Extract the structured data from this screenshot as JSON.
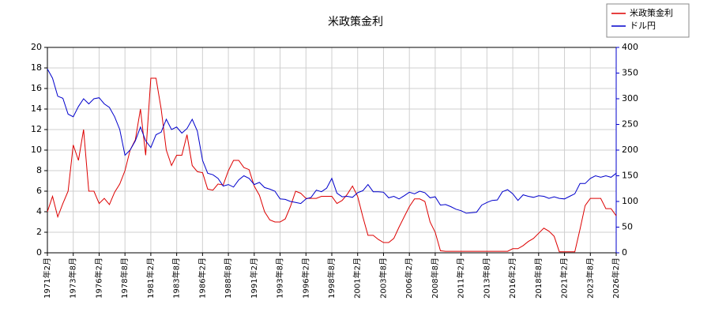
{
  "chart_data": {
    "type": "line",
    "title": "米政策金利",
    "categories": [
      "1971年2月",
      null,
      null,
      null,
      null,
      "1973年8月",
      null,
      null,
      null,
      null,
      "1976年2月",
      null,
      null,
      null,
      null,
      "1978年8月",
      null,
      null,
      null,
      null,
      "1981年2月",
      null,
      null,
      null,
      null,
      "1983年8月",
      null,
      null,
      null,
      null,
      "1986年2月",
      null,
      null,
      null,
      null,
      "1988年8月",
      null,
      null,
      null,
      null,
      "1991年2月",
      null,
      null,
      null,
      null,
      "1993年8月",
      null,
      null,
      null,
      null,
      "1996年2月",
      null,
      null,
      null,
      null,
      "1998年8月",
      null,
      null,
      null,
      null,
      "2001年2月",
      null,
      null,
      null,
      null,
      "2003年8月",
      null,
      null,
      null,
      null,
      "2006年2月",
      null,
      null,
      null,
      null,
      "2008年8月",
      null,
      null,
      null,
      null,
      "2011年2月",
      null,
      null,
      null,
      null,
      "2013年8月",
      null,
      null,
      null,
      null,
      "2016年2月",
      null,
      null,
      null,
      null,
      "2018年8月",
      null,
      null,
      null,
      null,
      "2021年2月",
      null,
      null,
      null,
      null,
      "2023年8月",
      null,
      null,
      null,
      null,
      "2026年2月"
    ],
    "series": [
      {
        "name": "米政策金利",
        "color": "#dd0000",
        "values": [
          4,
          5.5,
          3.5,
          4.8,
          6,
          10.5,
          9,
          12,
          6,
          6,
          4.8,
          5.3,
          4.7,
          5.9,
          6.7,
          8,
          10,
          11,
          14,
          9.5,
          17,
          17,
          14,
          10,
          8.5,
          9.5,
          9.5,
          11.5,
          8.5,
          7.9,
          7.8,
          6.2,
          6.1,
          6.7,
          6.6,
          8,
          9,
          9,
          8.3,
          8.1,
          6.5,
          5.6,
          4,
          3.2,
          3,
          3,
          3.3,
          4.5,
          6,
          5.8,
          5.3,
          5.3,
          5.3,
          5.5,
          5.5,
          5.5,
          4.8,
          5.1,
          5.7,
          6.5,
          5.5,
          3.5,
          1.7,
          1.7,
          1.3,
          1,
          1,
          1.4,
          2.5,
          3.5,
          4.5,
          5.25,
          5.25,
          5,
          3,
          2,
          0.2,
          0.15,
          0.15,
          0.15,
          0.15,
          0.15,
          0.15,
          0.15,
          0.15,
          0.15,
          0.15,
          0.15,
          0.15,
          0.15,
          0.4,
          0.4,
          0.7,
          1.1,
          1.4,
          1.9,
          2.4,
          2.1,
          1.6,
          0.1,
          0.1,
          0.1,
          0.1,
          2.3,
          4.6,
          5.3,
          5.3,
          5.3,
          4.3,
          4.3,
          3.6
        ]
      },
      {
        "name": "ドル円",
        "color": "#0000cc",
        "axis": "y2",
        "values": [
          358,
          340,
          305,
          301,
          270,
          265,
          285,
          300,
          290,
          300,
          302,
          290,
          283,
          265,
          240,
          190,
          200,
          218,
          245,
          218,
          205,
          230,
          235,
          260,
          240,
          245,
          233,
          242,
          260,
          237,
          180,
          155,
          152,
          145,
          130,
          133,
          128,
          142,
          150,
          145,
          133,
          137,
          127,
          124,
          120,
          105,
          104,
          100,
          98,
          96,
          105,
          108,
          122,
          119,
          126,
          145,
          116,
          109,
          110,
          108,
          117,
          121,
          133,
          119,
          119,
          118,
          107,
          110,
          105,
          111,
          118,
          115,
          120,
          117,
          107,
          109,
          93,
          94,
          90,
          85,
          82,
          77,
          78,
          79,
          93,
          98,
          102,
          103,
          119,
          123,
          115,
          102,
          113,
          110,
          108,
          111,
          110,
          106,
          109,
          106,
          105,
          110,
          115,
          135,
          135,
          145,
          150,
          147,
          150,
          147,
          155
        ]
      }
    ],
    "ylim": [
      0,
      20
    ],
    "yticks": [
      0,
      2,
      4,
      6,
      8,
      10,
      12,
      14,
      16,
      18,
      20
    ],
    "y2lim": [
      0,
      400
    ],
    "y2ticks": [
      0,
      50,
      100,
      150,
      200,
      250,
      300,
      350,
      400
    ],
    "grid": true,
    "legend": "top-right"
  }
}
